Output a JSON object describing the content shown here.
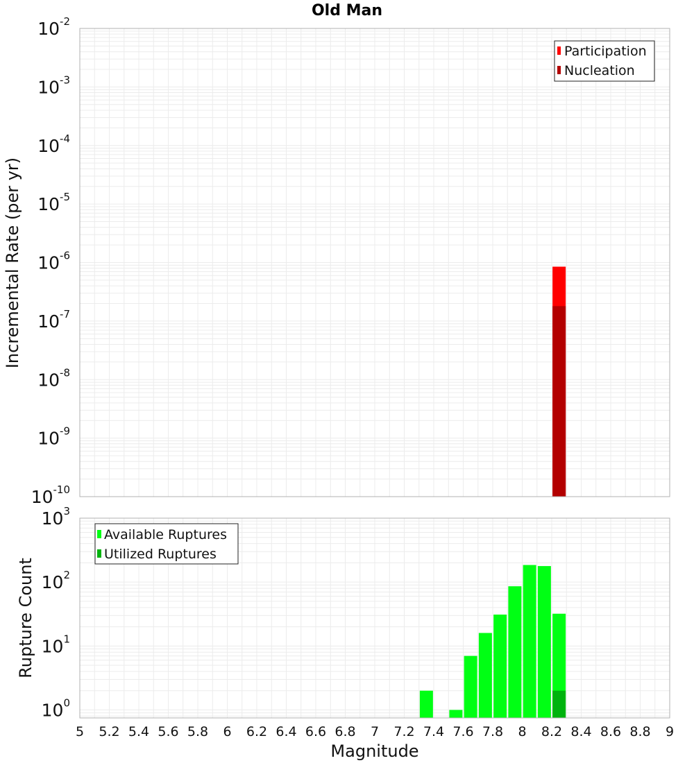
{
  "title": "Old Man",
  "colors": {
    "participation": "#ff0000",
    "nucleation": "#b30000",
    "available": "#00ff14",
    "utilized": "#00b30e",
    "grid": "#ececec",
    "frame": "#b0b0b0"
  },
  "chart_data": [
    {
      "type": "bar",
      "scale": "log",
      "ylabel": "Incremental Rate (per yr)",
      "ylim_exponents": [
        -10,
        -2
      ],
      "ytick_exponents": [
        -10,
        -9,
        -8,
        -7,
        -6,
        -5,
        -4,
        -3,
        -2
      ],
      "xlim": [
        5,
        9
      ],
      "grid": true,
      "legend_position": "top-right",
      "series": [
        {
          "name": "Participation",
          "color_key": "participation",
          "points": [
            {
              "x": 8.25,
              "y": 8.5e-07
            }
          ]
        },
        {
          "name": "Nucleation",
          "color_key": "nucleation",
          "points": [
            {
              "x": 8.25,
              "y": 1.8e-07
            }
          ]
        }
      ]
    },
    {
      "type": "bar",
      "scale": "log",
      "ylabel": "Rupture Count",
      "xlabel": "Magnitude",
      "ylim_exponents": [
        0,
        3
      ],
      "ytick_exponents": [
        0,
        1,
        2,
        3
      ],
      "xlim": [
        5,
        9
      ],
      "xticks": [
        "5",
        "5.2",
        "5.4",
        "5.6",
        "5.8",
        "6",
        "6.2",
        "6.4",
        "6.6",
        "6.8",
        "7",
        "7.2",
        "7.4",
        "7.6",
        "7.8",
        "8",
        "8.2",
        "8.4",
        "8.6",
        "8.8",
        "9"
      ],
      "grid": true,
      "legend_position": "top-left",
      "series": [
        {
          "name": "Available Ruptures",
          "color_key": "available",
          "points": [
            {
              "x": 7.35,
              "y": 2
            },
            {
              "x": 7.55,
              "y": 1
            },
            {
              "x": 7.65,
              "y": 7
            },
            {
              "x": 7.75,
              "y": 16
            },
            {
              "x": 7.85,
              "y": 31
            },
            {
              "x": 7.95,
              "y": 86
            },
            {
              "x": 8.05,
              "y": 185
            },
            {
              "x": 8.15,
              "y": 178
            },
            {
              "x": 8.25,
              "y": 32
            }
          ]
        },
        {
          "name": "Utilized Ruptures",
          "color_key": "utilized",
          "points": [
            {
              "x": 8.25,
              "y": 2
            }
          ]
        }
      ]
    }
  ]
}
